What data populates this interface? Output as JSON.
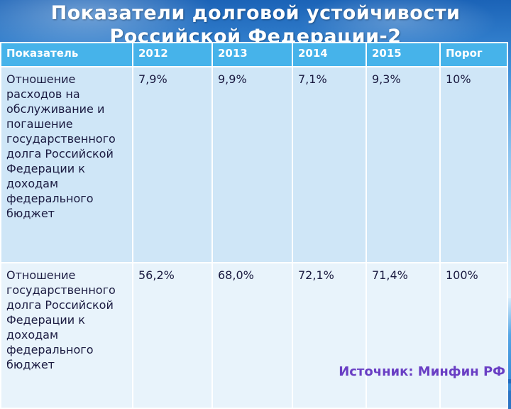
{
  "slide": {
    "title": "Показатели долговой устойчивости Российской Федерации-2",
    "source": "Источник: Минфин РФ"
  },
  "table": {
    "headers": [
      "Показатель",
      "2012",
      "2013",
      "2014",
      "2015",
      "Порог"
    ],
    "rows": [
      [
        "Отношение расходов на обслуживание и погашение государственного долга Российской Федерации к доходам федерального бюджет",
        "7,9%",
        "9,9%",
        "7,1%",
        "9,3%",
        "10%"
      ],
      [
        "Отношение государственного долга Российской Федерации к доходам федерального бюджет",
        "56,2%",
        "68,0%",
        "72,1%",
        "71,4%",
        "100%"
      ]
    ]
  }
}
